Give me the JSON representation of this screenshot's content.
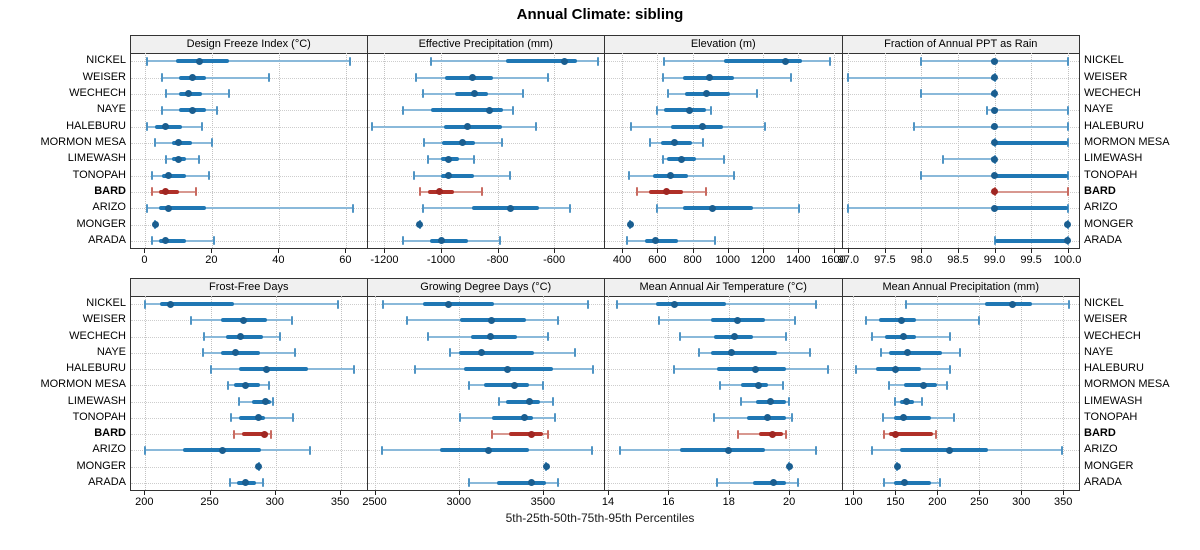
{
  "title": "Annual Climate: sibling",
  "xlabel": "5th-25th-50th-75th-95th Percentiles",
  "colors": {
    "blue_light": "#8ab9da",
    "blue_cap": "#4f94c4",
    "blue_main": "#1f77b4",
    "blue_dot": "#1a5e90",
    "red_light": "#d89890",
    "red_cap": "#c96a60",
    "red_main": "#b03028",
    "red_dot": "#a02622",
    "header_bg": "#f0f0f0",
    "panel_border": "#333333",
    "grid": "#c8c8c8"
  },
  "chart_data": {
    "type": "quantile-dot-plot",
    "title": "Annual Climate: sibling",
    "xlabel": "5th-25th-50th-75th-95th Percentiles",
    "quantile_labels": [
      "5th",
      "25th",
      "50th",
      "75th",
      "95th"
    ],
    "legend_position": "none",
    "grid": "dotted",
    "sites": [
      "NICKEL",
      "WEISER",
      "WECHECH",
      "NAYE",
      "HALEBURU",
      "MORMON MESA",
      "LIMEWASH",
      "TONOPAH",
      "BARD",
      "ARIZO",
      "MONGER",
      "ARADA"
    ],
    "highlight_site": "BARD",
    "panels": [
      {
        "title": "Design Freeze Index (°C)",
        "xlim": [
          -4.3,
          66.6
        ],
        "ticks": [
          0,
          20,
          40,
          60
        ],
        "tick_labels": [
          "0",
          "20",
          "40",
          "60"
        ],
        "quantiles": [
          [
            0.5,
            9,
            16,
            25,
            61
          ],
          [
            5,
            10,
            14,
            18,
            37
          ],
          [
            6,
            10,
            13,
            17,
            25
          ],
          [
            5,
            10,
            14,
            18,
            21.5
          ],
          [
            0.5,
            3,
            6,
            11,
            17
          ],
          [
            3,
            8,
            10,
            14,
            20
          ],
          [
            6,
            8,
            10,
            12,
            16
          ],
          [
            2,
            5,
            7,
            12,
            19
          ],
          [
            2,
            4,
            6,
            10,
            15
          ],
          [
            0.5,
            4,
            7,
            18,
            62
          ],
          [
            3,
            3,
            3,
            3,
            3
          ],
          [
            2,
            4,
            6,
            12,
            20.5
          ]
        ]
      },
      {
        "title": "Effective Precipitation (mm)",
        "xlim": [
          -1260,
          -420
        ],
        "ticks": [
          -1200,
          -1000,
          -800,
          -600
        ],
        "tick_labels": [
          "-1200",
          "-1000",
          "-800",
          "-600"
        ],
        "quantiles": [
          [
            -1035,
            -770,
            -565,
            -520,
            -445
          ],
          [
            -1090,
            -985,
            -890,
            -815,
            -620
          ],
          [
            -1065,
            -950,
            -880,
            -835,
            -710
          ],
          [
            -1135,
            -1035,
            -830,
            -780,
            -745
          ],
          [
            -1245,
            -990,
            -905,
            -785,
            -665
          ],
          [
            -1060,
            -995,
            -925,
            -880,
            -785
          ],
          [
            -1045,
            -1000,
            -975,
            -935,
            -885
          ],
          [
            -1095,
            -1000,
            -975,
            -885,
            -755
          ],
          [
            -1075,
            -1045,
            -1005,
            -955,
            -855
          ],
          [
            -1065,
            -890,
            -755,
            -655,
            -545
          ],
          [
            -1075,
            -1075,
            -1075,
            -1075,
            -1075
          ],
          [
            -1135,
            -1040,
            -1000,
            -905,
            -790
          ]
        ]
      },
      {
        "title": "Elevation (m)",
        "xlim": [
          303,
          1651
        ],
        "ticks": [
          400,
          600,
          800,
          1000,
          1200,
          1400,
          1600
        ],
        "tick_labels": [
          "400",
          "600",
          "800",
          "1000",
          "1200",
          "1400",
          "1600"
        ],
        "quantiles": [
          [
            640,
            980,
            1325,
            1420,
            1580
          ],
          [
            630,
            745,
            895,
            1035,
            1360
          ],
          [
            660,
            755,
            880,
            1010,
            1165
          ],
          [
            600,
            640,
            785,
            875,
            905
          ],
          [
            450,
            680,
            855,
            975,
            1210
          ],
          [
            560,
            620,
            700,
            795,
            860
          ],
          [
            630,
            655,
            735,
            820,
            980
          ],
          [
            440,
            575,
            675,
            775,
            1035
          ],
          [
            485,
            555,
            650,
            745,
            875
          ],
          [
            600,
            745,
            915,
            1145,
            1405
          ],
          [
            445,
            445,
            445,
            445,
            445
          ],
          [
            430,
            530,
            590,
            715,
            925
          ]
        ]
      },
      {
        "title": "Fraction of Annual PPT as Rain",
        "xlim": [
          96.92,
          100.17
        ],
        "ticks": [
          97.0,
          97.5,
          98.0,
          98.5,
          99.0,
          99.5,
          100.0
        ],
        "tick_labels": [
          "97.0",
          "97.5",
          "98.0",
          "98.5",
          "99.0",
          "99.5",
          "100.0"
        ],
        "quantiles": [
          [
            98.0,
            98.95,
            99.0,
            99.05,
            100.0
          ],
          [
            97.0,
            98.95,
            99.0,
            99.0,
            99.0
          ],
          [
            98.0,
            98.95,
            99.0,
            99.0,
            99.0
          ],
          [
            98.9,
            99.0,
            99.0,
            99.05,
            100.0
          ],
          [
            97.9,
            98.95,
            99.0,
            99.0,
            100.0
          ],
          [
            99.0,
            99.0,
            99.0,
            100.0,
            100.0
          ],
          [
            98.3,
            98.95,
            99.0,
            99.0,
            99.0
          ],
          [
            98.0,
            99.0,
            99.0,
            100.0,
            100.0
          ],
          [
            99.0,
            99.0,
            99.0,
            99.0,
            100.0
          ],
          [
            97.0,
            99.0,
            99.0,
            100.0,
            100.0
          ],
          [
            100.0,
            100.0,
            100.0,
            100.0,
            100.0
          ],
          [
            99.0,
            99.0,
            100.0,
            100.0,
            100.0
          ]
        ]
      },
      {
        "title": "Frost-Free Days",
        "xlim": [
          189,
          371
        ],
        "ticks": [
          200,
          250,
          300,
          350
        ],
        "tick_labels": [
          "200",
          "250",
          "300",
          "350"
        ],
        "quantiles": [
          [
            200,
            211,
            219,
            268,
            348
          ],
          [
            235,
            258,
            275,
            293,
            312
          ],
          [
            245,
            262,
            273,
            290,
            303
          ],
          [
            244,
            258,
            269,
            288,
            315
          ],
          [
            250,
            272,
            293,
            325,
            360
          ],
          [
            263,
            268,
            277,
            288,
            295
          ],
          [
            272,
            282,
            292,
            296,
            298
          ],
          [
            266,
            272,
            287,
            292,
            313
          ],
          [
            268,
            274,
            291,
            294,
            296
          ],
          [
            200,
            229,
            259,
            289,
            326
          ],
          [
            287,
            287,
            287,
            287,
            287
          ],
          [
            265,
            270,
            277,
            285,
            290
          ]
        ]
      },
      {
        "title": "Growing Degree Days (°C)",
        "xlim": [
          2458,
          3869
        ],
        "ticks": [
          2500,
          3000,
          3500
        ],
        "tick_labels": [
          "2500",
          "3000",
          "3500"
        ],
        "quantiles": [
          [
            2550,
            2790,
            2940,
            3210,
            3770
          ],
          [
            2690,
            3010,
            3195,
            3400,
            3590
          ],
          [
            2820,
            3070,
            3190,
            3345,
            3530
          ],
          [
            2950,
            3000,
            3135,
            3450,
            3690
          ],
          [
            2740,
            3030,
            3290,
            3560,
            3800
          ],
          [
            3060,
            3150,
            3330,
            3420,
            3500
          ],
          [
            3240,
            3280,
            3420,
            3480,
            3560
          ],
          [
            3010,
            3200,
            3390,
            3440,
            3570
          ],
          [
            3195,
            3300,
            3435,
            3500,
            3530
          ],
          [
            2545,
            2890,
            3175,
            3420,
            3790
          ],
          [
            3520,
            3520,
            3520,
            3520,
            3520
          ],
          [
            3060,
            3230,
            3430,
            3520,
            3590
          ]
        ]
      },
      {
        "title": "Mean Annual Air Temperature (°C)",
        "xlim": [
          13.9,
          21.77
        ],
        "ticks": [
          14,
          16,
          18,
          20
        ],
        "tick_labels": [
          "14",
          "16",
          "18",
          "20"
        ],
        "quantiles": [
          [
            14.3,
            15.6,
            16.2,
            17.9,
            20.9
          ],
          [
            15.7,
            17.4,
            18.3,
            19.2,
            20.2
          ],
          [
            16.4,
            17.5,
            18.2,
            18.8,
            19.9
          ],
          [
            17.0,
            17.4,
            18.1,
            19.6,
            20.7
          ],
          [
            16.2,
            17.6,
            18.9,
            19.9,
            21.3
          ],
          [
            17.7,
            18.4,
            19.0,
            19.3,
            19.8
          ],
          [
            18.4,
            18.9,
            19.4,
            19.9,
            20.0
          ],
          [
            17.5,
            18.6,
            19.3,
            19.9,
            20.1
          ],
          [
            18.3,
            19.0,
            19.45,
            19.8,
            19.9
          ],
          [
            14.4,
            16.4,
            18.0,
            19.2,
            20.9
          ],
          [
            20.0,
            20.0,
            20.0,
            20.0,
            20.0
          ],
          [
            17.6,
            18.8,
            19.5,
            19.9,
            20.3
          ]
        ]
      },
      {
        "title": "Mean Annual Precipitation (mm)",
        "xlim": [
          87,
          370
        ],
        "ticks": [
          100,
          150,
          200,
          250,
          300,
          350
        ],
        "tick_labels": [
          "100",
          "150",
          "200",
          "250",
          "300",
          "350"
        ],
        "quantiles": [
          [
            163,
            257,
            290,
            313,
            357
          ],
          [
            115,
            130,
            157,
            175,
            250
          ],
          [
            122,
            138,
            160,
            175,
            215
          ],
          [
            133,
            143,
            165,
            205,
            227
          ],
          [
            103,
            127,
            150,
            180,
            215
          ],
          [
            143,
            160,
            184,
            200,
            212
          ],
          [
            150,
            155,
            163,
            172,
            182
          ],
          [
            135,
            148,
            160,
            193,
            220
          ],
          [
            137,
            143,
            150,
            195,
            199
          ],
          [
            122,
            155,
            215,
            260,
            348
          ],
          [
            152,
            152,
            152,
            152,
            152
          ],
          [
            137,
            148,
            161,
            192,
            203
          ]
        ]
      }
    ]
  }
}
